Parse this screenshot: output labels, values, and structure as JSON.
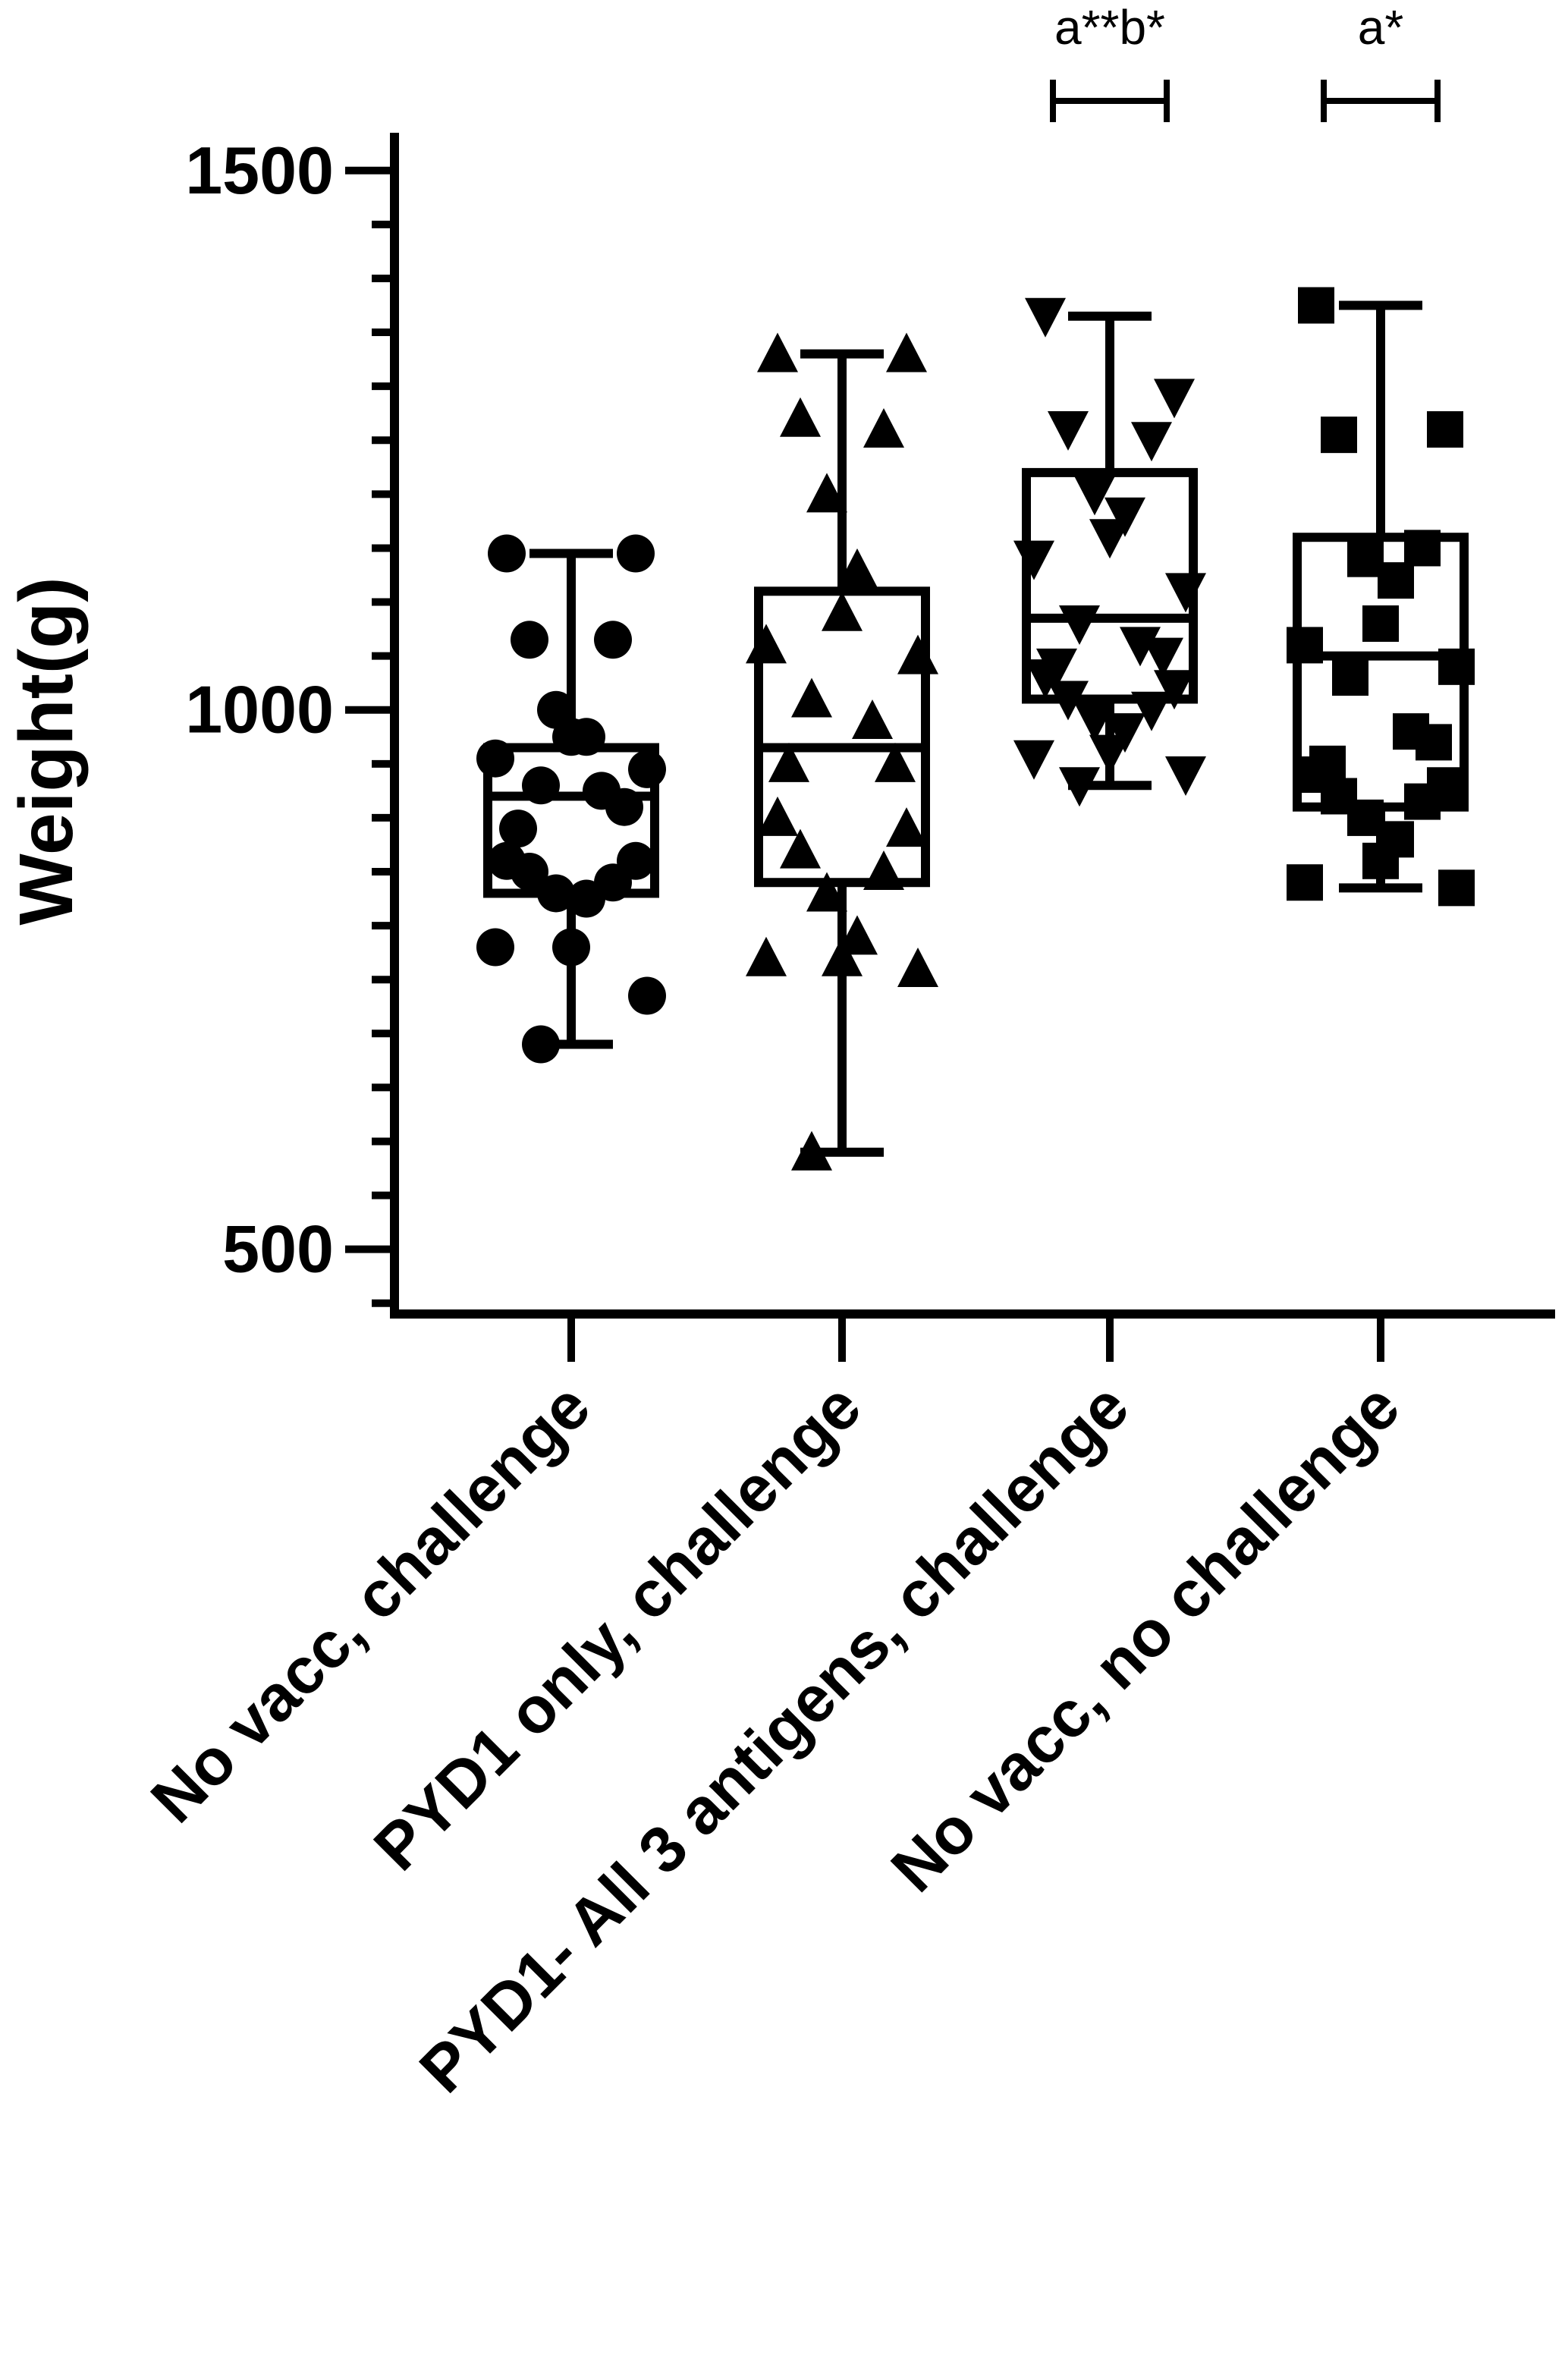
{
  "chart_data": {
    "type": "box",
    "ylabel": "Weight(g)",
    "ylim": [
      440,
      1535
    ],
    "yticks": [
      500,
      1000,
      1500
    ],
    "grid": false,
    "legend": "none",
    "categories": [
      "No vacc, challenge",
      "PYD1 only, challenge",
      "PYD1- All 3 antigens, challenge",
      "No vacc, no challenge"
    ],
    "series": [
      {
        "marker": "circle",
        "box": {
          "min": 690,
          "q1": 830,
          "median": 920,
          "q3": 965,
          "max": 1145
        },
        "points": [
          1145,
          1145,
          1065,
          1065,
          1000,
          975,
          975,
          955,
          945,
          930,
          925,
          910,
          890,
          860,
          860,
          850,
          840,
          830,
          825,
          780,
          780,
          735,
          690
        ]
      },
      {
        "marker": "triangle-up",
        "box": {
          "min": 590,
          "q1": 840,
          "median": 965,
          "q3": 1110,
          "max": 1330
        },
        "points": [
          1330,
          1330,
          1270,
          1260,
          1200,
          1130,
          1090,
          1060,
          1050,
          1010,
          990,
          950,
          950,
          900,
          890,
          870,
          850,
          830,
          790,
          770,
          770,
          760,
          590
        ]
      },
      {
        "marker": "triangle-down",
        "box": {
          "min": 930,
          "q1": 1010,
          "median": 1085,
          "q3": 1220,
          "max": 1365
        },
        "points": [
          1365,
          1290,
          1260,
          1250,
          1200,
          1180,
          1160,
          1140,
          1110,
          1080,
          1060,
          1050,
          1040,
          1030,
          1020,
          1010,
          1000,
          990,
          980,
          960,
          955,
          940,
          930
        ]
      },
      {
        "marker": "square",
        "box": {
          "min": 835,
          "q1": 910,
          "median": 1050,
          "q3": 1160,
          "max": 1375
        },
        "points": [
          1375,
          1260,
          1255,
          1150,
          1140,
          1120,
          1080,
          1060,
          1040,
          1030,
          980,
          970,
          950,
          940,
          930,
          920,
          915,
          900,
          880,
          860,
          840,
          835
        ]
      }
    ],
    "annotations": [
      {
        "category": 2,
        "text": "a**b*"
      },
      {
        "category": 3,
        "text": "a*"
      }
    ]
  }
}
